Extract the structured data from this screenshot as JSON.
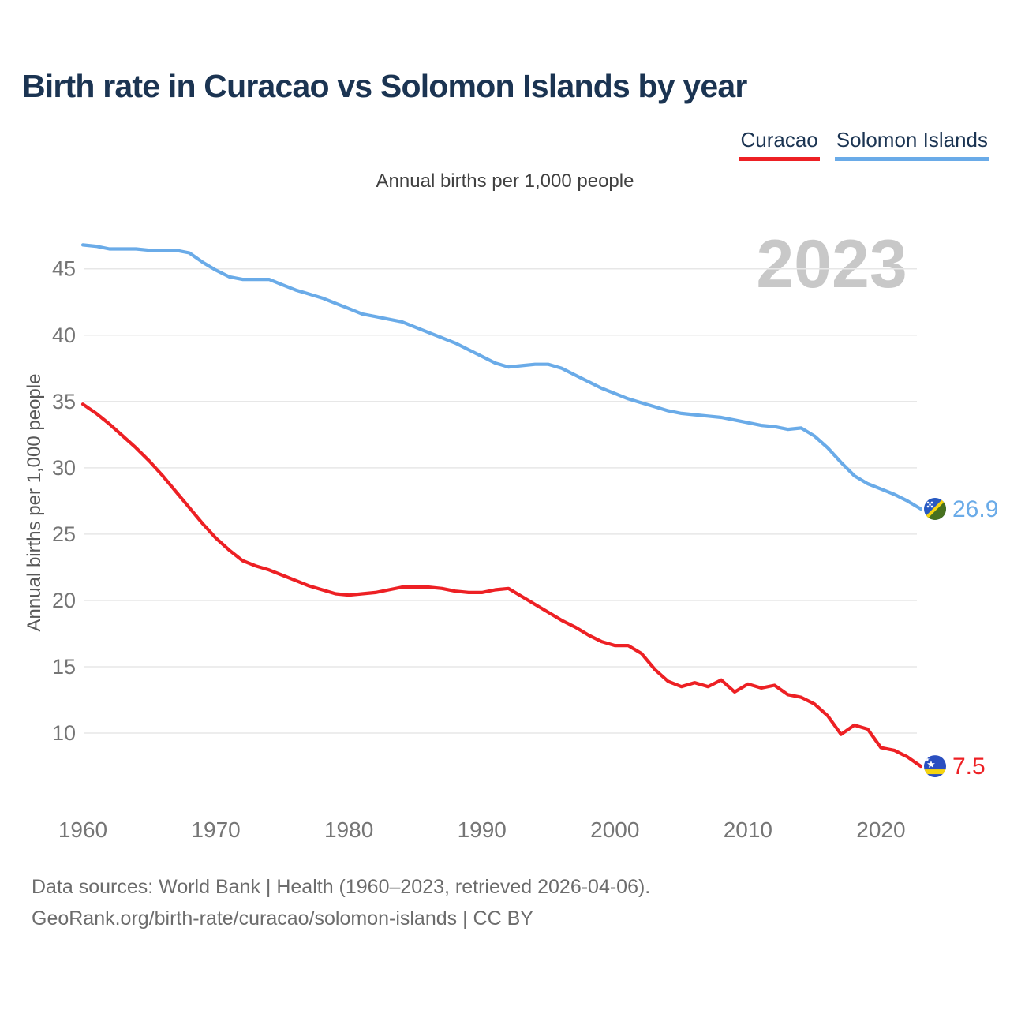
{
  "header": {
    "title": "Birth rate in Curacao vs Solomon Islands by year",
    "color": "#1b3452"
  },
  "legend": {
    "items": [
      {
        "label": "Curacao",
        "color": "#ed2024"
      },
      {
        "label": "Solomon Islands",
        "color": "#6aabe8"
      }
    ]
  },
  "subtitle": "Annual births per 1,000 people",
  "chart_data": {
    "type": "line",
    "title": "Birth rate in Curacao vs Solomon Islands by year",
    "subtitle": "Annual births per 1,000 people",
    "xlabel": "",
    "ylabel": "Annual births per 1,000 people",
    "watermark": "2023",
    "grid": "horizontal",
    "legend_position": "top-right",
    "xlim": [
      1960,
      2023
    ],
    "ylim": [
      6,
      48
    ],
    "x_ticks": [
      1960,
      1970,
      1980,
      1990,
      2000,
      2010,
      2020
    ],
    "y_ticks": [
      10,
      15,
      20,
      25,
      30,
      35,
      40,
      45
    ],
    "colors": {
      "grid": "#e7e7e7",
      "tick_label": "#757575",
      "watermark": "#c8c8c8"
    },
    "x": [
      1960,
      1961,
      1962,
      1963,
      1964,
      1965,
      1966,
      1967,
      1968,
      1969,
      1970,
      1971,
      1972,
      1973,
      1974,
      1975,
      1976,
      1977,
      1978,
      1979,
      1980,
      1981,
      1982,
      1983,
      1984,
      1985,
      1986,
      1987,
      1988,
      1989,
      1990,
      1991,
      1992,
      1993,
      1994,
      1995,
      1996,
      1997,
      1998,
      1999,
      2000,
      2001,
      2002,
      2003,
      2004,
      2005,
      2006,
      2007,
      2008,
      2009,
      2010,
      2011,
      2012,
      2013,
      2014,
      2015,
      2016,
      2017,
      2018,
      2019,
      2020,
      2021,
      2022,
      2023
    ],
    "series": [
      {
        "id": "curacao",
        "name": "Curacao",
        "color": "#ed2024",
        "flag_icon": "curacao-flag-icon",
        "end_label": "7.5",
        "values": [
          34.8,
          34.1,
          33.3,
          32.4,
          31.5,
          30.5,
          29.4,
          28.2,
          27.0,
          25.8,
          24.7,
          23.8,
          23.0,
          22.6,
          22.3,
          21.9,
          21.5,
          21.1,
          20.8,
          20.5,
          20.4,
          20.5,
          20.6,
          20.8,
          21.0,
          21.0,
          21.0,
          20.9,
          20.7,
          20.6,
          20.6,
          20.8,
          20.9,
          20.3,
          19.7,
          19.1,
          18.5,
          18.0,
          17.4,
          16.9,
          16.6,
          16.6,
          16.0,
          14.8,
          13.9,
          13.5,
          13.8,
          13.5,
          14.0,
          13.1,
          13.7,
          13.4,
          13.6,
          12.9,
          12.7,
          12.2,
          11.3,
          9.9,
          10.6,
          10.3,
          8.9,
          8.7,
          8.2,
          7.5
        ]
      },
      {
        "id": "solomon-islands",
        "name": "Solomon Islands",
        "color": "#6aabe8",
        "flag_icon": "solomon-islands-flag-icon",
        "end_label": "26.9",
        "values": [
          46.8,
          46.7,
          46.5,
          46.5,
          46.5,
          46.4,
          46.4,
          46.4,
          46.2,
          45.5,
          44.9,
          44.4,
          44.2,
          44.2,
          44.2,
          43.8,
          43.4,
          43.1,
          42.8,
          42.4,
          42.0,
          41.6,
          41.4,
          41.2,
          41.0,
          40.6,
          40.2,
          39.8,
          39.4,
          38.9,
          38.4,
          37.9,
          37.6,
          37.7,
          37.8,
          37.8,
          37.5,
          37.0,
          36.5,
          36.0,
          35.6,
          35.2,
          34.9,
          34.6,
          34.3,
          34.1,
          34.0,
          33.9,
          33.8,
          33.6,
          33.4,
          33.2,
          33.1,
          32.9,
          33.0,
          32.4,
          31.5,
          30.4,
          29.4,
          28.8,
          28.4,
          28.0,
          27.5,
          26.9
        ]
      }
    ]
  },
  "footer": {
    "line1": "Data sources: World Bank | Health (1960–2023, retrieved 2026-04-06).",
    "line2": "GeoRank.org/birth-rate/curacao/solomon-islands | CC BY"
  }
}
